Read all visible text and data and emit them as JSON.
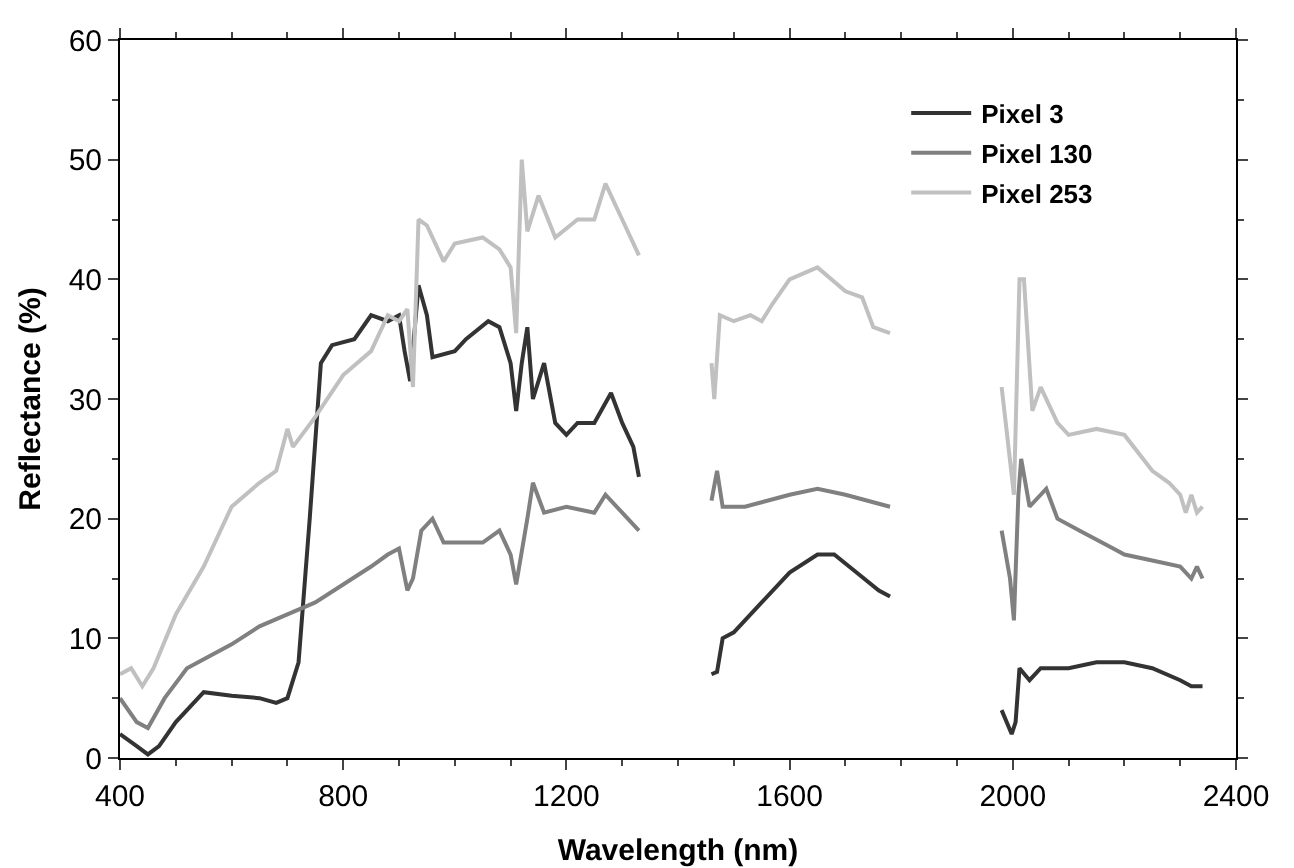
{
  "chart_data": {
    "type": "line",
    "xlabel": "Wavelength (nm)",
    "ylabel": "Reflectance (%)",
    "xlim": [
      400,
      2400
    ],
    "xticks": [
      400,
      800,
      1200,
      1600,
      2000,
      2400
    ],
    "ylim": [
      0,
      60
    ],
    "yticks": [
      0,
      10,
      20,
      30,
      40,
      50,
      60
    ],
    "grid": false,
    "legend": "top right",
    "marker": "none",
    "line_style": "solid",
    "series": [
      {
        "name": "Pixel 3",
        "color": "#333333",
        "x": [
          400,
          430,
          450,
          470,
          500,
          550,
          600,
          650,
          680,
          700,
          720,
          740,
          760,
          780,
          820,
          850,
          880,
          900,
          910,
          920,
          935,
          950,
          960,
          1000,
          1020,
          1060,
          1080,
          1100,
          1110,
          1120,
          1130,
          1140,
          1160,
          1180,
          1200,
          1220,
          1250,
          1280,
          1300,
          1320,
          1330,
          1400,
          1460,
          1470,
          1480,
          1500,
          1550,
          1600,
          1650,
          1680,
          1720,
          1760,
          1780,
          1900,
          1980,
          1998,
          2005,
          2012,
          2030,
          2050,
          2100,
          2150,
          2200,
          2250,
          2300,
          2320,
          2340
        ],
        "values": [
          2,
          1,
          0.3,
          1,
          3,
          5.5,
          5.2,
          5,
          4.6,
          5,
          8,
          20,
          33,
          34.5,
          35,
          37,
          36.5,
          37,
          34,
          31.5,
          39.5,
          37,
          33.5,
          34,
          35,
          36.5,
          36,
          33,
          29,
          33,
          36,
          30,
          33,
          28,
          27,
          28,
          28,
          30.5,
          28,
          26,
          23.5,
          null,
          7,
          7.2,
          10,
          10.5,
          13,
          15.5,
          17,
          17,
          15.5,
          14,
          13.5,
          null,
          4,
          2,
          3,
          7.5,
          6.5,
          7.5,
          7.5,
          8,
          8,
          7.5,
          6.5,
          6,
          6
        ]
      },
      {
        "name": "Pixel 130",
        "color": "#808080",
        "x": [
          400,
          430,
          450,
          480,
          520,
          600,
          650,
          700,
          750,
          800,
          850,
          880,
          900,
          915,
          925,
          940,
          960,
          980,
          1050,
          1080,
          1100,
          1110,
          1130,
          1140,
          1160,
          1200,
          1250,
          1270,
          1300,
          1330,
          1400,
          1460,
          1470,
          1480,
          1520,
          1560,
          1600,
          1650,
          1700,
          1780,
          1900,
          1980,
          1995,
          2002,
          2010,
          2015,
          2030,
          2050,
          2060,
          2080,
          2120,
          2180,
          2200,
          2250,
          2300,
          2320,
          2330,
          2340
        ],
        "values": [
          5,
          3,
          2.5,
          5,
          7.5,
          9.5,
          11,
          12,
          13,
          14.5,
          16,
          17,
          17.5,
          14,
          15,
          19,
          20,
          18,
          18,
          19,
          17,
          14.5,
          20,
          23,
          20.5,
          21,
          20.5,
          22,
          20.5,
          19,
          null,
          21.5,
          24,
          21,
          21,
          21.5,
          22,
          22.5,
          22,
          21,
          null,
          19,
          15,
          11.5,
          22,
          25,
          21,
          22,
          22.5,
          20,
          19,
          17.5,
          17,
          16.5,
          16,
          15,
          16,
          15
        ]
      },
      {
        "name": "Pixel 253",
        "color": "#c0c0c0",
        "x": [
          400,
          420,
          440,
          460,
          500,
          550,
          600,
          650,
          680,
          700,
          710,
          750,
          800,
          850,
          880,
          900,
          915,
          925,
          935,
          950,
          980,
          1000,
          1050,
          1080,
          1100,
          1110,
          1120,
          1130,
          1150,
          1180,
          1220,
          1250,
          1270,
          1300,
          1330,
          1400,
          1460,
          1465,
          1475,
          1500,
          1530,
          1550,
          1570,
          1600,
          1650,
          1700,
          1730,
          1750,
          1780,
          1900,
          1980,
          2002,
          2012,
          2020,
          2035,
          2050,
          2080,
          2100,
          2150,
          2200,
          2250,
          2280,
          2300,
          2310,
          2320,
          2330,
          2340
        ],
        "values": [
          7,
          7.5,
          6,
          7.5,
          12,
          16,
          21,
          23,
          24,
          27.5,
          26,
          28.5,
          32,
          34,
          37,
          36.5,
          37.5,
          31,
          45,
          44.5,
          41.5,
          43,
          43.5,
          42.5,
          41,
          35.5,
          50,
          44,
          47,
          43.5,
          45,
          45,
          48,
          45,
          42,
          null,
          33,
          30,
          37,
          36.5,
          37,
          36.5,
          38,
          40,
          41,
          39,
          38.5,
          36,
          35.5,
          null,
          31,
          22,
          40,
          40,
          29,
          31,
          28,
          27,
          27.5,
          27,
          24,
          23,
          22,
          20.5,
          22,
          20.5,
          21
        ]
      }
    ]
  }
}
